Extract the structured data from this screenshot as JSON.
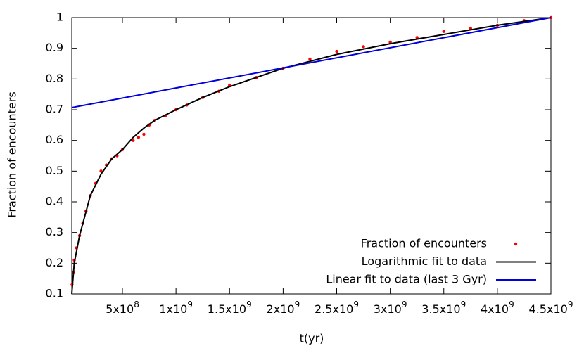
{
  "chart_data": {
    "type": "line",
    "xlabel": "t(yr)",
    "ylabel": "Fraction of encounters",
    "xlim": [
      27000000,
      4500000000
    ],
    "ylim": [
      0.1,
      1
    ],
    "xticks": [
      {
        "value": 500000000,
        "label": "5x10",
        "exponent": "8"
      },
      {
        "value": 1000000000,
        "label": "1x10",
        "exponent": "9"
      },
      {
        "value": 1500000000,
        "label": "1.5x10",
        "exponent": "9"
      },
      {
        "value": 2000000000,
        "label": "2x10",
        "exponent": "9"
      },
      {
        "value": 2500000000,
        "label": "2.5x10",
        "exponent": "9"
      },
      {
        "value": 3000000000,
        "label": "3x10",
        "exponent": "9"
      },
      {
        "value": 3500000000,
        "label": "3.5x10",
        "exponent": "9"
      },
      {
        "value": 4000000000,
        "label": "4x10",
        "exponent": "9"
      },
      {
        "value": 4500000000,
        "label": "4.5x10",
        "exponent": "9"
      }
    ],
    "yticks": [
      0.1,
      0.2,
      0.3,
      0.4,
      0.5,
      0.6,
      0.7,
      0.8,
      0.9,
      1
    ],
    "legend": "lower right",
    "series": [
      {
        "name": "Fraction of encounters",
        "color": "#ff0000",
        "style": "points",
        "x": [
          30000000,
          40000000,
          50000000,
          70000000,
          100000000,
          130000000,
          160000000,
          200000000,
          250000000,
          300000000,
          350000000,
          400000000,
          450000000,
          500000000,
          600000000,
          650000000,
          700000000,
          750000000,
          800000000,
          900000000,
          1000000000,
          1100000000,
          1250000000,
          1400000000,
          1500000000,
          1750000000,
          2000000000,
          2250000000,
          2500000000,
          2750000000,
          3000000000,
          3250000000,
          3500000000,
          3750000000,
          4000000000,
          4250000000,
          4500000000
        ],
        "values": [
          0.13,
          0.17,
          0.21,
          0.25,
          0.29,
          0.33,
          0.37,
          0.42,
          0.46,
          0.5,
          0.52,
          0.54,
          0.55,
          0.57,
          0.6,
          0.61,
          0.62,
          0.65,
          0.665,
          0.68,
          0.7,
          0.715,
          0.74,
          0.76,
          0.78,
          0.805,
          0.835,
          0.865,
          0.89,
          0.905,
          0.92,
          0.935,
          0.955,
          0.965,
          0.975,
          0.99,
          1.0
        ]
      },
      {
        "name": "Logarithmic fit to data",
        "color": "#000000",
        "style": "line",
        "x": [
          27000000,
          50000000,
          100000000,
          200000000,
          300000000,
          400000000,
          500000000,
          600000000,
          700000000,
          800000000,
          1000000000,
          1250000000,
          1500000000,
          2000000000,
          2500000000,
          3000000000,
          3500000000,
          4000000000,
          4500000000
        ],
        "values": [
          0.1,
          0.2,
          0.29,
          0.42,
          0.49,
          0.54,
          0.57,
          0.61,
          0.64,
          0.665,
          0.7,
          0.74,
          0.775,
          0.835,
          0.88,
          0.915,
          0.945,
          0.975,
          1.0
        ]
      },
      {
        "name": "Linear fit to data (last 3 Gyr)",
        "color": "#0000dd",
        "style": "line",
        "x": [
          27000000,
          4500000000
        ],
        "values": [
          0.707,
          1.0
        ]
      }
    ]
  }
}
